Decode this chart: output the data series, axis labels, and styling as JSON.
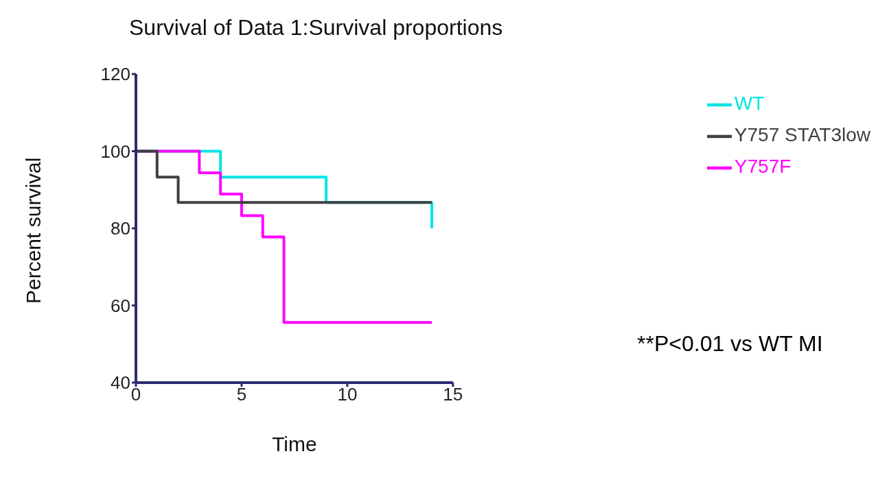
{
  "chart_data": {
    "type": "step",
    "title": "Survival of Data 1:Survival proportions",
    "xlabel": "Time",
    "ylabel": "Percent survival",
    "series": [
      {
        "name": "WT",
        "color": "#00e5e5",
        "x": [
          0,
          4,
          9,
          14
        ],
        "values": [
          100,
          93.3,
          86.7,
          80
        ]
      },
      {
        "name": "Y757F",
        "color": "#ff00ff",
        "x": [
          0,
          3,
          4,
          5,
          6,
          7,
          14
        ],
        "values": [
          100,
          94.4,
          88.9,
          83.3,
          77.8,
          55.6,
          55.6
        ]
      },
      {
        "name": "Y757 STAT3low",
        "color": "#404040",
        "x": [
          0,
          1,
          2,
          14
        ],
        "values": [
          100,
          93.3,
          86.7,
          86.7
        ]
      }
    ],
    "xlim": [
      0,
      15
    ],
    "xticks": [
      0,
      5,
      10,
      15
    ],
    "ylim": [
      40,
      120
    ],
    "yticks": [
      40,
      60,
      80,
      100,
      120
    ],
    "grid": false,
    "legend": "top right",
    "marker": "none",
    "line_style": "solid",
    "annotations": [
      "**P<0.01 vs WT MI"
    ]
  }
}
